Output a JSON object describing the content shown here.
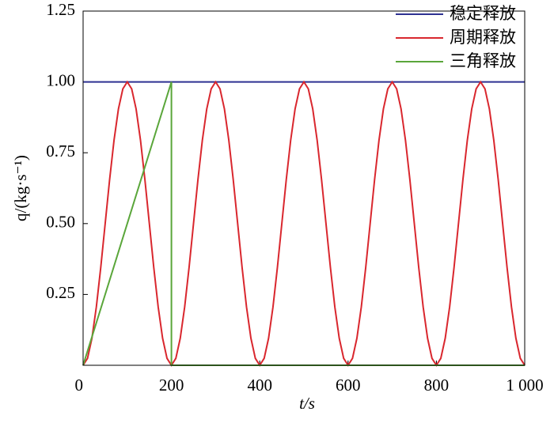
{
  "chart_data": {
    "type": "line",
    "xlabel": "t/s",
    "ylabel": "q/(kg·s⁻¹)",
    "xlim": [
      0,
      1000
    ],
    "ylim": [
      0,
      1.25
    ],
    "xticks": [
      0,
      200,
      400,
      600,
      800,
      {
        "value": 1000,
        "label": "1 000"
      }
    ],
    "yticks": [
      0.25,
      {
        "value": 0.5,
        "label": "0.50"
      },
      0.75,
      {
        "value": 1,
        "label": "1.00"
      },
      1.25
    ],
    "legend": "upper-right",
    "series": [
      {
        "name": "稳定释放",
        "color": "#2e3192",
        "x": [
          0,
          1000
        ],
        "values": [
          1,
          1
        ]
      },
      {
        "name": "周期释放",
        "color": "#d9272e",
        "x": [
          0,
          10,
          20,
          30,
          40,
          50,
          60,
          70,
          80,
          90,
          100,
          110,
          120,
          130,
          140,
          150,
          160,
          170,
          180,
          190,
          200,
          210,
          220,
          230,
          240,
          250,
          260,
          270,
          280,
          290,
          300,
          310,
          320,
          330,
          340,
          350,
          360,
          370,
          380,
          390,
          400,
          410,
          420,
          430,
          440,
          450,
          460,
          470,
          480,
          490,
          500,
          510,
          520,
          530,
          540,
          550,
          560,
          570,
          580,
          590,
          600,
          610,
          620,
          630,
          640,
          650,
          660,
          670,
          680,
          690,
          700,
          710,
          720,
          730,
          740,
          750,
          760,
          770,
          780,
          790,
          800,
          810,
          820,
          830,
          840,
          850,
          860,
          870,
          880,
          890,
          900,
          910,
          920,
          930,
          940,
          950,
          960,
          970,
          980,
          990,
          1000
        ],
        "values": [
          0,
          0.0245,
          0.0955,
          0.2061,
          0.3455,
          0.5,
          0.6545,
          0.7939,
          0.9045,
          0.9755,
          1,
          0.9755,
          0.9045,
          0.7939,
          0.6545,
          0.5,
          0.3455,
          0.2061,
          0.0955,
          0.0245,
          0,
          0.0245,
          0.0955,
          0.2061,
          0.3455,
          0.5,
          0.6545,
          0.7939,
          0.9045,
          0.9755,
          1,
          0.9755,
          0.9045,
          0.7939,
          0.6545,
          0.5,
          0.3455,
          0.2061,
          0.0955,
          0.0245,
          0,
          0.0245,
          0.0955,
          0.2061,
          0.3455,
          0.5,
          0.6545,
          0.7939,
          0.9045,
          0.9755,
          1,
          0.9755,
          0.9045,
          0.7939,
          0.6545,
          0.5,
          0.3455,
          0.2061,
          0.0955,
          0.0245,
          0,
          0.0245,
          0.0955,
          0.2061,
          0.3455,
          0.5,
          0.6545,
          0.7939,
          0.9045,
          0.9755,
          1,
          0.9755,
          0.9045,
          0.7939,
          0.6545,
          0.5,
          0.3455,
          0.2061,
          0.0955,
          0.0245,
          0,
          0.0245,
          0.0955,
          0.2061,
          0.3455,
          0.5,
          0.6545,
          0.7939,
          0.9045,
          0.9755,
          1,
          0.9755,
          0.9045,
          0.7939,
          0.6545,
          0.5,
          0.3455,
          0.2061,
          0.0955,
          0.0245,
          0
        ]
      },
      {
        "name": "三角释放",
        "color": "#5aa63a",
        "x": [
          0,
          200,
          200,
          1000
        ],
        "values": [
          0,
          1,
          0,
          0
        ]
      }
    ]
  }
}
